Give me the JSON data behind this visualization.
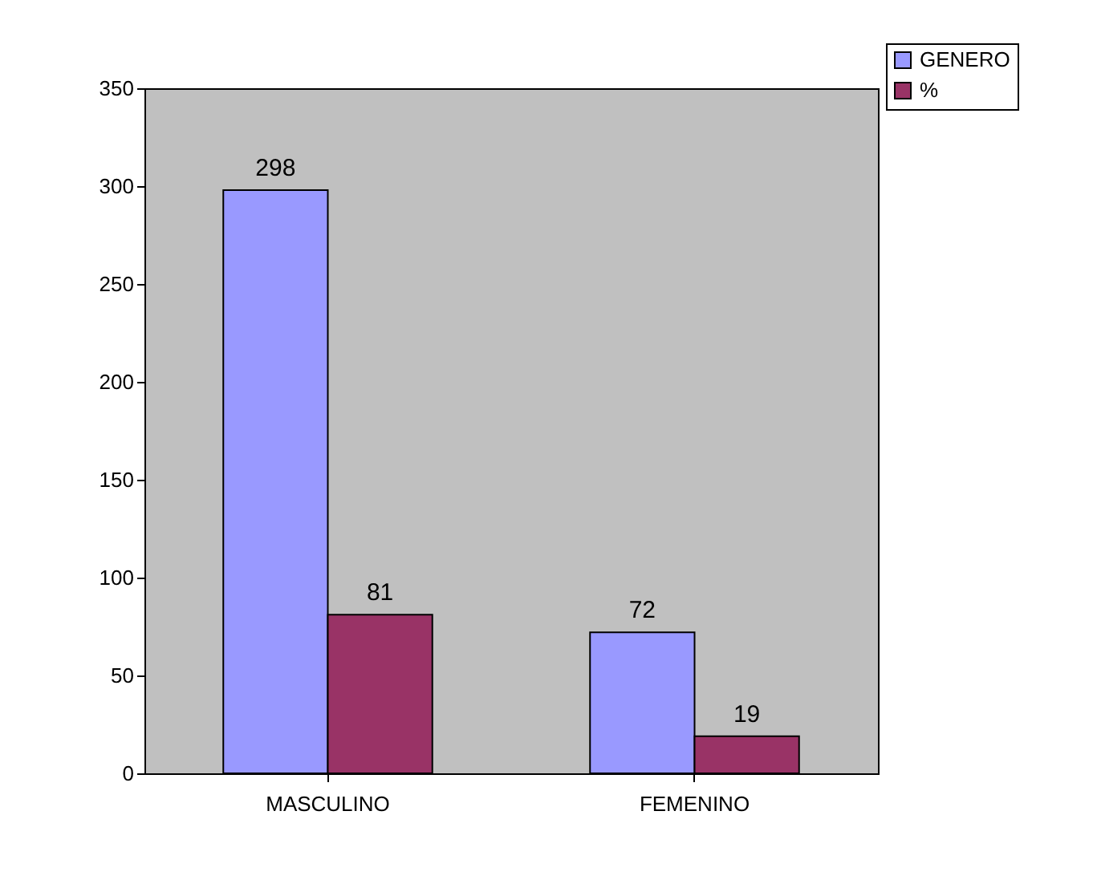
{
  "chart_data": {
    "type": "bar",
    "categories": [
      "MASCULINO",
      "FEMENINO"
    ],
    "series": [
      {
        "name": "GENERO",
        "color": "#9999ff",
        "values": [
          298,
          72
        ]
      },
      {
        "name": "%",
        "color": "#993366",
        "values": [
          81,
          19
        ]
      }
    ],
    "ylim": [
      0,
      350
    ],
    "yticks": [
      0,
      50,
      100,
      150,
      200,
      250,
      300,
      350
    ],
    "grid": false,
    "legend": "top right",
    "data_labels": true
  }
}
